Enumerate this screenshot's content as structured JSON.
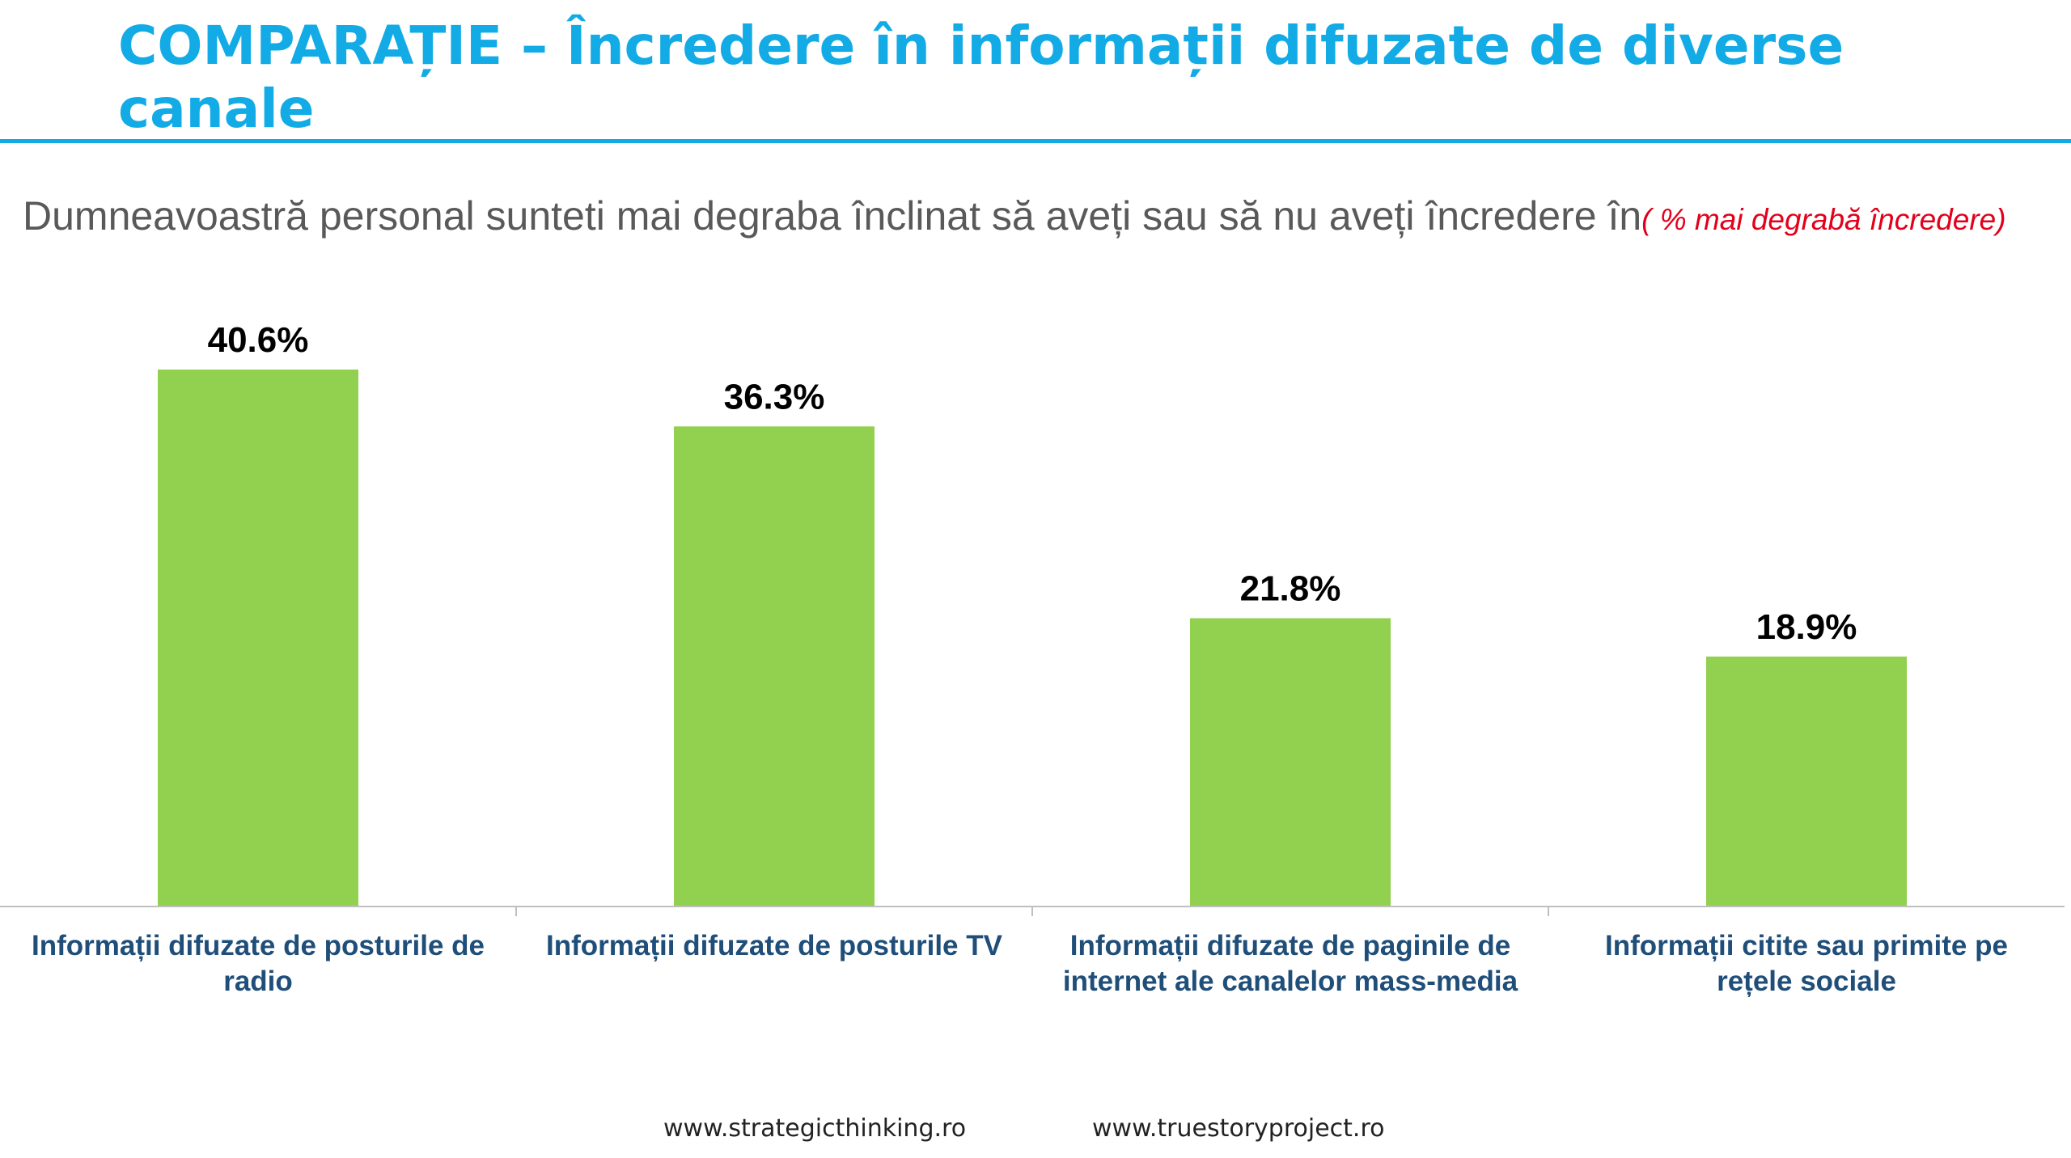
{
  "header": {
    "title": "COMPARAȚIE – Încredere în informații difuzate de diverse canale",
    "question": "Dumneavoastră personal sunteti mai degraba înclinat să aveți sau să nu aveți încredere în",
    "note": "( % mai degrabă încredere)"
  },
  "chart_data": {
    "type": "bar",
    "categories": [
      [
        "Informații difuzate de posturile de",
        "radio"
      ],
      [
        "Informații difuzate de posturile TV"
      ],
      [
        "Informații difuzate de paginile de",
        "internet ale canalelor mass-media"
      ],
      [
        "Informații citite sau primite pe",
        "rețele sociale"
      ]
    ],
    "values": [
      40.6,
      36.3,
      21.8,
      18.9
    ],
    "value_labels": [
      "40.6%",
      "36.3%",
      "21.8%",
      "18.9%"
    ],
    "bar_color": "#92D050",
    "label_color": "#1F4E79",
    "ylim": [
      0,
      50
    ],
    "grid": false,
    "legend": "none"
  },
  "footer": {
    "link1": "www.strategicthinking.ro",
    "link2": "www.truestoryproject.ro"
  },
  "colors": {
    "title": "#12ABE6",
    "question": "#595959",
    "note": "#E3001B"
  }
}
